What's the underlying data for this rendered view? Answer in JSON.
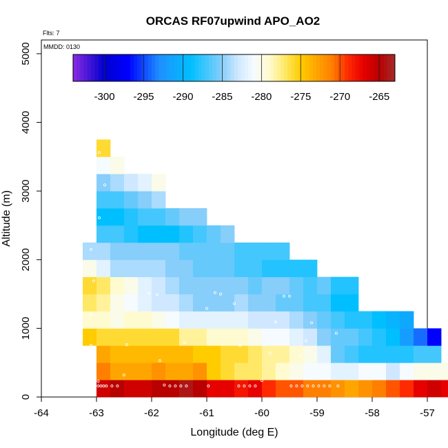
{
  "chart_data": {
    "type": "heatmap",
    "title": "ORCAS RF07upwind APO_AO2",
    "xlabel": "Longitude (deg E)",
    "ylabel": "Altitude (m)",
    "info_lines": [
      "Flts: 7",
      "MMDD: 0130"
    ],
    "xlim": [
      -64,
      -57
    ],
    "ylim": [
      0,
      5200
    ],
    "xticks": [
      -64,
      -63,
      -62,
      -61,
      -60,
      -59,
      -58,
      -57
    ],
    "yticks": [
      0,
      1000,
      2000,
      3000,
      4000,
      5000
    ],
    "cell_width_deg": 0.25,
    "cell_height_m": 250,
    "colorbar": {
      "range": [
        -304,
        -263
      ],
      "ticks": [
        -300,
        -295,
        -290,
        -285,
        -280,
        -275,
        -270,
        -265
      ],
      "palette": [
        [
          -304,
          "#8a2be2"
        ],
        [
          -300,
          "#0000cd"
        ],
        [
          -297,
          "#0000ff"
        ],
        [
          -293,
          "#1e90ff"
        ],
        [
          -289,
          "#00bfff"
        ],
        [
          -285,
          "#87cefa"
        ],
        [
          -283,
          "#cfe8ff"
        ],
        [
          -281,
          "#f5fbff"
        ],
        [
          -279,
          "#fffbd0"
        ],
        [
          -277,
          "#ffe866"
        ],
        [
          -275,
          "#ffcc00"
        ],
        [
          -273,
          "#ffa500"
        ],
        [
          -271,
          "#ff7f00"
        ],
        [
          -269,
          "#ff2a00"
        ],
        [
          -267,
          "#e60000"
        ],
        [
          -265,
          "#b80000"
        ],
        [
          -263,
          "#a52a2a"
        ]
      ]
    },
    "rows": [
      {
        "z": 125,
        "x0": -63.0,
        "v": [
          -266,
          -265,
          -266,
          -266,
          -265,
          -265,
          -264,
          -265,
          -267,
          -267,
          -268,
          -267,
          -269,
          -270,
          -270,
          -271,
          -271,
          -272,
          -273,
          -272,
          -271,
          -270,
          -269,
          -267,
          -266,
          -267
        ]
      },
      {
        "z": 375,
        "x0": -63.0,
        "v": [
          -271,
          -273,
          -273,
          -273,
          -272,
          -273,
          -273,
          -272,
          -275,
          -276,
          -277,
          -277,
          -278,
          -279,
          -280,
          -281,
          -281,
          -282,
          -282,
          -281,
          -281,
          -283,
          -281,
          -280,
          -280,
          -280
        ]
      },
      {
        "z": 625,
        "x0": -63.0,
        "v": [
          -273,
          -274,
          -274,
          -274,
          -274,
          -274,
          -274,
          -275,
          -275,
          -276,
          -276,
          -277,
          -278,
          -278,
          -279,
          -280,
          -282,
          -286,
          -287,
          -288,
          -288,
          -288,
          -288,
          -287,
          -287
        ]
      },
      {
        "z": 875,
        "x0": -63.25,
        "v": [
          -275,
          -276,
          -276,
          -276,
          -276,
          -276,
          -276,
          -278,
          -278,
          -279,
          -279,
          -279,
          -280,
          -281,
          -281,
          -282,
          -283,
          -285,
          -286,
          -286,
          -287,
          -288,
          -289,
          -292,
          -294,
          -297
        ]
      },
      {
        "z": 1125,
        "x0": -63.25,
        "v": [
          -279,
          -279,
          -280,
          -279,
          -279,
          -280,
          -281,
          -282,
          -282,
          -282,
          -282,
          -282,
          -283,
          -283,
          -283,
          -284,
          -285,
          -286,
          -287,
          -288,
          -288,
          -289,
          -290,
          -291
        ]
      },
      {
        "z": 1375,
        "x0": -63.25,
        "v": [
          -277,
          -278,
          -280,
          -281,
          -282,
          -283,
          -283,
          -284,
          -285,
          -285,
          -285,
          -284,
          -285,
          -285,
          -286,
          -286,
          -287,
          -287,
          -289,
          -289
        ]
      },
      {
        "z": 1625,
        "x0": -63.25,
        "v": [
          -276,
          -277,
          -279,
          -280,
          -282,
          -283,
          -284,
          -285,
          -285,
          -285,
          -285,
          -285,
          -286,
          -285,
          -285,
          -286,
          -287,
          -286,
          -288,
          -288
        ]
      },
      {
        "z": 1875,
        "x0": -63.25,
        "v": [
          -280,
          -282,
          -284,
          -284,
          -284,
          -284,
          -285,
          -285,
          -286,
          -286,
          -286,
          -287,
          -287,
          -288,
          -288,
          -288,
          -288
        ]
      },
      {
        "z": 2125,
        "x0": -63.25,
        "v": [
          -284,
          -284,
          -285,
          -285,
          -285,
          -285,
          -285,
          -286,
          -286,
          -286,
          -286,
          -287,
          -287,
          -287,
          -287
        ]
      },
      {
        "z": 2375,
        "x0": -63.0,
        "v": [
          -287,
          -287,
          -288,
          -289,
          -289,
          -289,
          -288,
          -287,
          -286,
          -285
        ]
      },
      {
        "z": 2625,
        "x0": -63.0,
        "v": [
          -289,
          -289,
          -288,
          -287,
          -287,
          -286,
          -285,
          -285
        ]
      },
      {
        "z": 2875,
        "x0": -63.0,
        "v": [
          -287,
          -287,
          -286,
          -285,
          -284
        ]
      },
      {
        "z": 3125,
        "x0": -63.0,
        "v": [
          -285,
          -284,
          -283,
          -282,
          -280
        ]
      },
      {
        "z": 3375,
        "x0": -63.0,
        "v": [
          -281,
          -280
        ]
      },
      {
        "z": 3625,
        "x0": -63.0,
        "v": [
          -276
        ]
      }
    ],
    "samples": [
      [
        -62.97,
        160
      ],
      [
        -62.92,
        160
      ],
      [
        -62.87,
        160
      ],
      [
        -62.82,
        160
      ],
      [
        -62.72,
        160
      ],
      [
        -62.62,
        160
      ],
      [
        -61.77,
        175
      ],
      [
        -61.67,
        160
      ],
      [
        -61.57,
        160
      ],
      [
        -61.47,
        160
      ],
      [
        -61.37,
        160
      ],
      [
        -60.97,
        160
      ],
      [
        -60.42,
        160
      ],
      [
        -60.32,
        160
      ],
      [
        -60.22,
        160
      ],
      [
        -60.12,
        160
      ],
      [
        -60.0,
        240
      ],
      [
        -59.47,
        160
      ],
      [
        -59.37,
        160
      ],
      [
        -59.27,
        160
      ],
      [
        -59.17,
        160
      ],
      [
        -59.07,
        160
      ],
      [
        -58.97,
        160
      ],
      [
        -58.87,
        160
      ],
      [
        -58.77,
        160
      ],
      [
        -58.62,
        160
      ],
      [
        -62.97,
        230
      ],
      [
        -62.5,
        320
      ],
      [
        -61.85,
        530
      ],
      [
        -59.85,
        640
      ],
      [
        -59.3,
        600
      ],
      [
        -58.65,
        930
      ],
      [
        -63.1,
        750
      ],
      [
        -62.45,
        760
      ],
      [
        -61.4,
        790
      ],
      [
        -60.4,
        750
      ],
      [
        -59.2,
        820
      ],
      [
        -59.75,
        1090
      ],
      [
        -59.1,
        1080
      ],
      [
        -63.1,
        1200
      ],
      [
        -62.05,
        1510
      ],
      [
        -61.9,
        1490
      ],
      [
        -61.0,
        1290
      ],
      [
        -60.5,
        1360
      ],
      [
        -59.6,
        1470
      ],
      [
        -59.5,
        1470
      ],
      [
        -63.05,
        1690
      ],
      [
        -60.85,
        1520
      ],
      [
        -60.75,
        1500
      ],
      [
        -63.1,
        2150
      ],
      [
        -62.95,
        2610
      ],
      [
        -62.85,
        3090
      ],
      [
        -62.95,
        3560
      ]
    ]
  }
}
